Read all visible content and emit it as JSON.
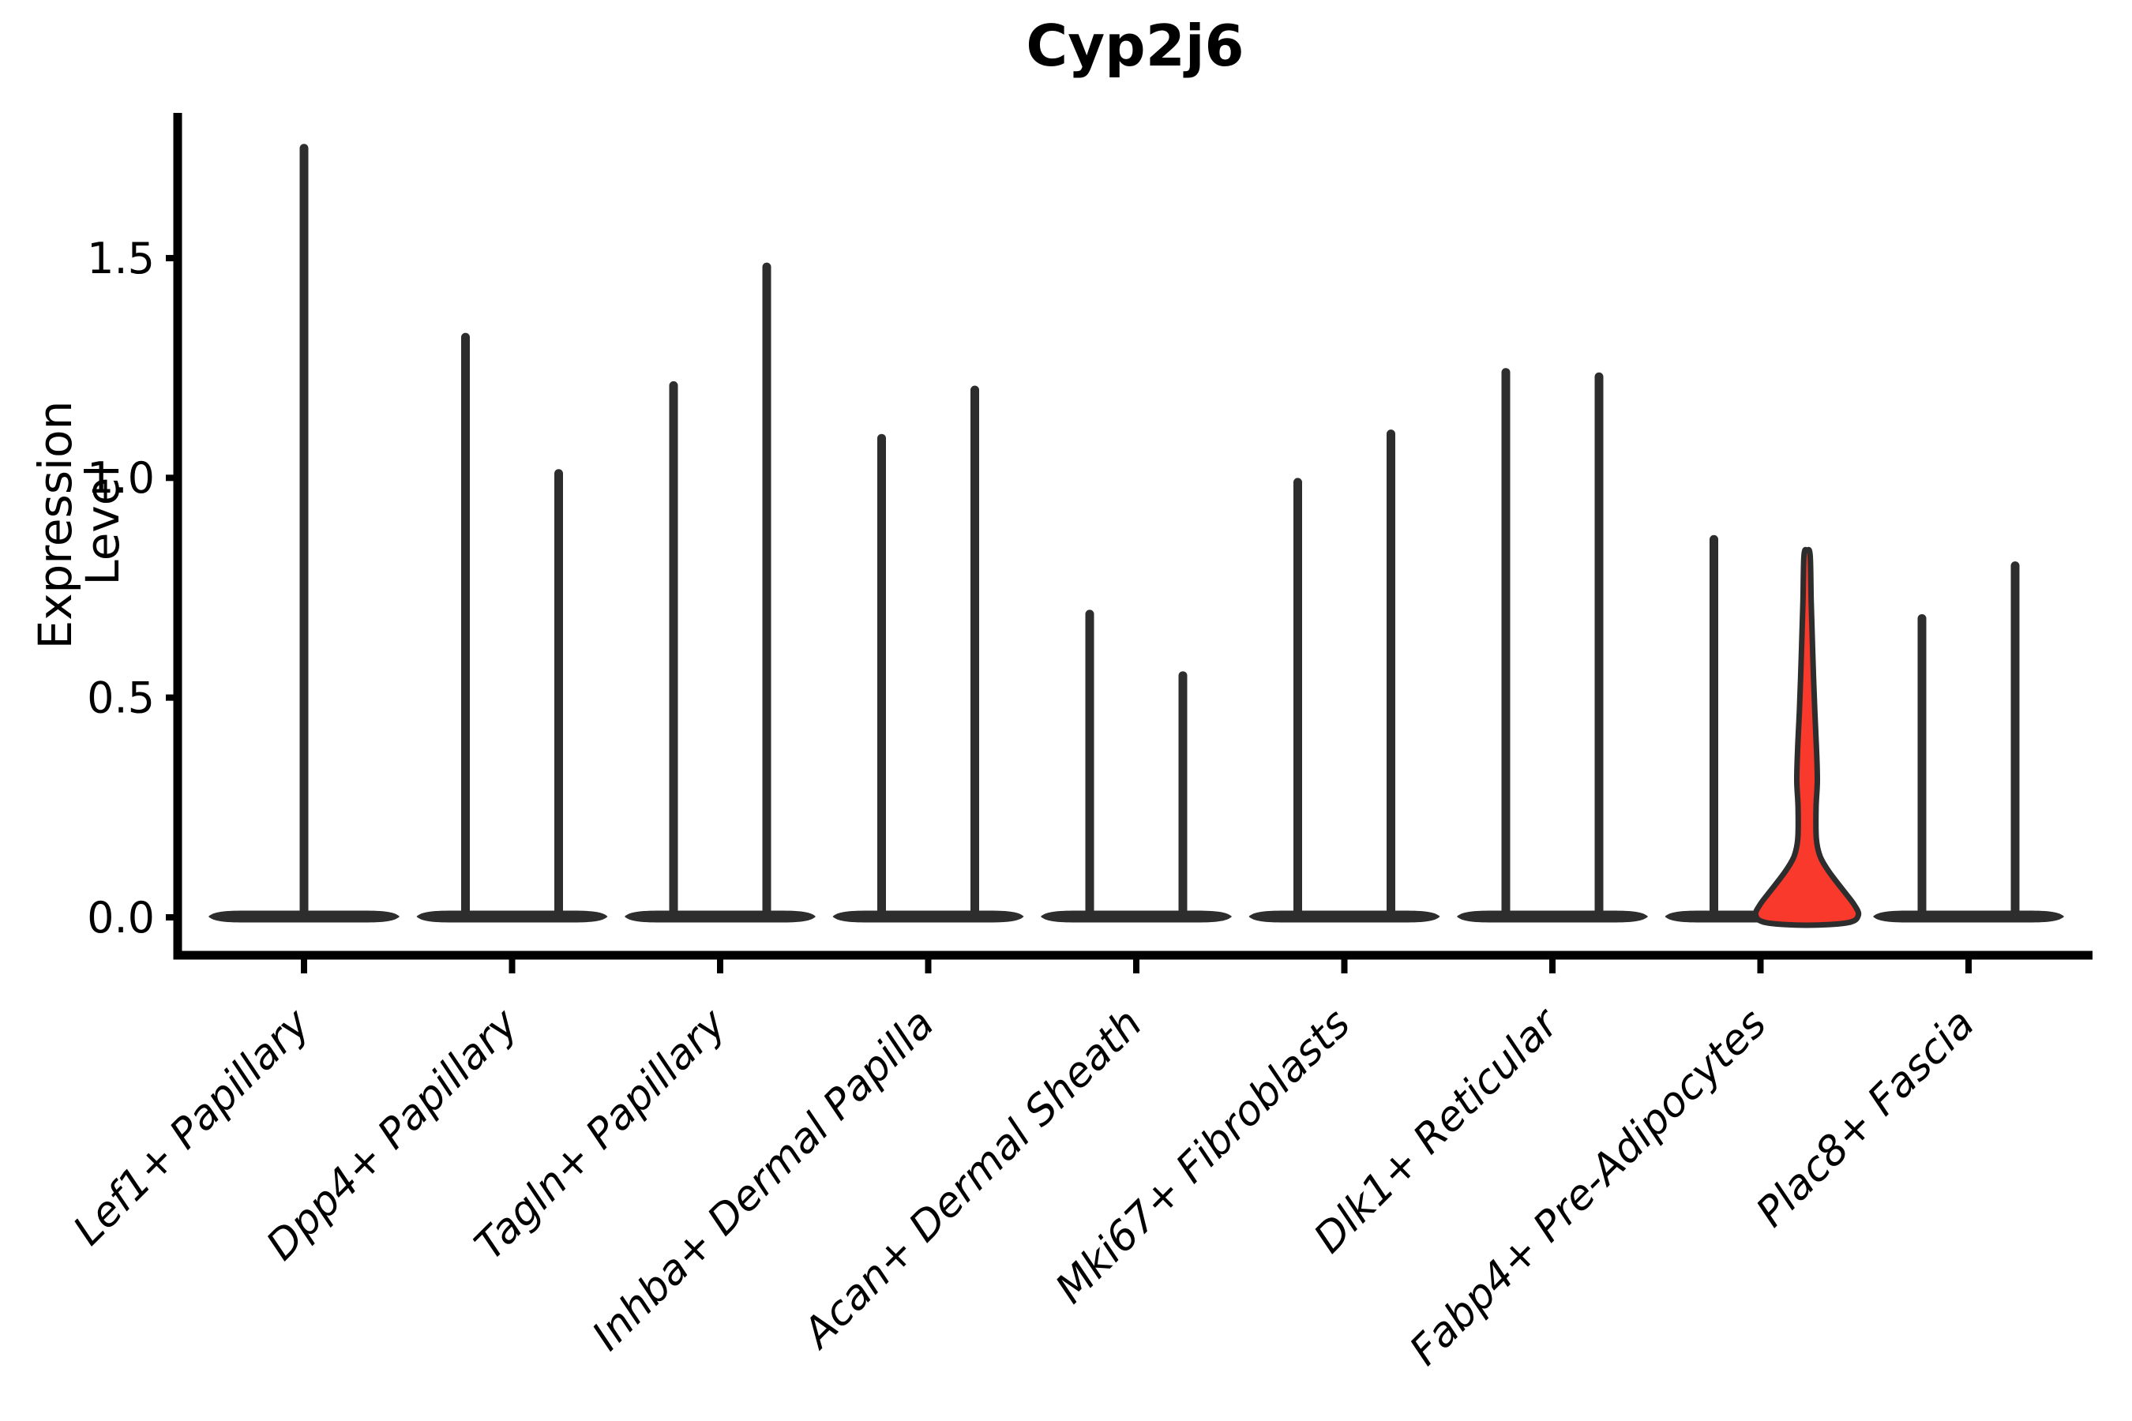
{
  "chart_data": {
    "type": "violin",
    "title": "Cyp2j6",
    "ylabel": "Expression Level",
    "xlabel": "",
    "grid": false,
    "legend": null,
    "ylim": [
      -0.09,
      1.83
    ],
    "yticks": [
      {
        "label": "0.0",
        "value": 0.0
      },
      {
        "label": "0.5",
        "value": 0.5
      },
      {
        "label": "1.0",
        "value": 1.0
      },
      {
        "label": "1.5",
        "value": 1.5
      }
    ],
    "categories": [
      "Lef1+ Papillary",
      "Dpp4+ Papillary",
      "Tagln+ Papillary",
      "Inhba+ Dermal Papilla",
      "Acan+ Dermal Sheath",
      "Mki67+ Fibroblasts",
      "Dlk1+ Reticular",
      "Fabp4+ Pre-Adipocytes",
      "Plac8+ Fascia"
    ],
    "series": [
      {
        "category": "Lef1+ Papillary",
        "violins": [
          {
            "max": 1.75,
            "highlight": false
          }
        ]
      },
      {
        "category": "Dpp4+ Papillary",
        "violins": [
          {
            "max": 1.32,
            "highlight": false
          },
          {
            "max": 1.01,
            "highlight": false
          }
        ]
      },
      {
        "category": "Tagln+ Papillary",
        "violins": [
          {
            "max": 1.21,
            "highlight": false
          },
          {
            "max": 1.48,
            "highlight": false
          }
        ]
      },
      {
        "category": "Inhba+ Dermal Papilla",
        "violins": [
          {
            "max": 1.09,
            "highlight": false
          },
          {
            "max": 1.2,
            "highlight": false
          }
        ]
      },
      {
        "category": "Acan+ Dermal Sheath",
        "violins": [
          {
            "max": 0.69,
            "highlight": false
          },
          {
            "max": 0.55,
            "highlight": false
          }
        ]
      },
      {
        "category": "Mki67+ Fibroblasts",
        "violins": [
          {
            "max": 0.99,
            "highlight": false
          },
          {
            "max": 1.1,
            "highlight": false
          }
        ]
      },
      {
        "category": "Dlk1+ Reticular",
        "violins": [
          {
            "max": 1.24,
            "highlight": false
          },
          {
            "max": 1.23,
            "highlight": false
          }
        ]
      },
      {
        "category": "Fabp4+ Pre-Adipocytes",
        "violins": [
          {
            "max": 0.86,
            "highlight": false
          },
          {
            "max": 0.82,
            "highlight": true,
            "fill": "#f8392b",
            "profile": [
              [
                0.835,
                0.0
              ],
              [
                0.824,
                0.06
              ],
              [
                0.72,
                0.08
              ],
              [
                0.6,
                0.11
              ],
              [
                0.47,
                0.15
              ],
              [
                0.38,
                0.185
              ],
              [
                0.31,
                0.2
              ],
              [
                0.25,
                0.175
              ],
              [
                0.18,
                0.18
              ],
              [
                0.14,
                0.25
              ],
              [
                0.105,
                0.42
              ],
              [
                0.065,
                0.68
              ],
              [
                0.03,
                0.91
              ],
              [
                0.005,
                1.0
              ],
              [
                -0.012,
                0.8
              ],
              [
                -0.018,
                0.0
              ]
            ]
          }
        ]
      },
      {
        "category": "Plac8+ Fascia",
        "violins": [
          {
            "max": 0.68,
            "highlight": false
          },
          {
            "max": 0.8,
            "highlight": false
          }
        ]
      }
    ],
    "colors": {
      "violin": "#2d2d2d",
      "highlight_fill": "#f8392b",
      "axis": "#000000",
      "background": "#ffffff"
    }
  }
}
